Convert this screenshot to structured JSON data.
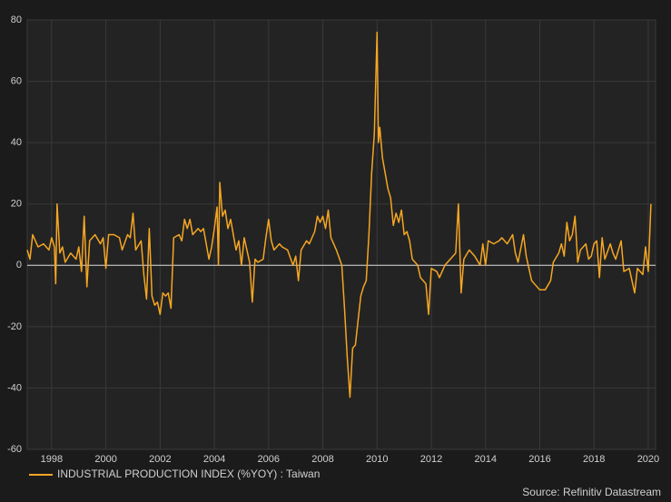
{
  "chart_data": {
    "type": "line",
    "x": [
      1997.1,
      1997.2,
      1997.3,
      1997.5,
      1997.7,
      1997.9,
      1998.0,
      1998.1,
      1998.15,
      1998.2,
      1998.3,
      1998.4,
      1998.5,
      1998.7,
      1998.9,
      1999.0,
      1999.1,
      1999.2,
      1999.3,
      1999.4,
      1999.6,
      1999.8,
      1999.9,
      2000.0,
      2000.1,
      2000.3,
      2000.5,
      2000.6,
      2000.8,
      2000.9,
      2001.0,
      2001.1,
      2001.3,
      2001.4,
      2001.5,
      2001.6,
      2001.7,
      2001.8,
      2001.9,
      2002.0,
      2002.1,
      2002.2,
      2002.3,
      2002.4,
      2002.5,
      2002.7,
      2002.8,
      2002.9,
      2003.0,
      2003.1,
      2003.2,
      2003.4,
      2003.5,
      2003.6,
      2003.8,
      2003.9,
      2004.0,
      2004.1,
      2004.15,
      2004.2,
      2004.3,
      2004.4,
      2004.5,
      2004.6,
      2004.7,
      2004.8,
      2004.9,
      2005.0,
      2005.1,
      2005.3,
      2005.4,
      2005.5,
      2005.6,
      2005.8,
      2005.9,
      2006.0,
      2006.1,
      2006.2,
      2006.4,
      2006.5,
      2006.7,
      2006.9,
      2007.0,
      2007.1,
      2007.2,
      2007.4,
      2007.5,
      2007.7,
      2007.8,
      2007.9,
      2008.0,
      2008.1,
      2008.2,
      2008.3,
      2008.5,
      2008.7,
      2008.8,
      2008.9,
      2009.0,
      2009.1,
      2009.2,
      2009.3,
      2009.4,
      2009.5,
      2009.6,
      2009.7,
      2009.8,
      2009.9,
      2010.0,
      2010.05,
      2010.1,
      2010.2,
      2010.3,
      2010.4,
      2010.5,
      2010.6,
      2010.7,
      2010.8,
      2010.9,
      2011.0,
      2011.1,
      2011.2,
      2011.3,
      2011.5,
      2011.6,
      2011.8,
      2011.9,
      2012.0,
      2012.2,
      2012.3,
      2012.5,
      2012.7,
      2012.9,
      2013.0,
      2013.1,
      2013.2,
      2013.4,
      2013.6,
      2013.8,
      2013.9,
      2014.0,
      2014.1,
      2014.3,
      2014.5,
      2014.6,
      2014.8,
      2015.0,
      2015.1,
      2015.2,
      2015.4,
      2015.5,
      2015.7,
      2015.8,
      2016.0,
      2016.2,
      2016.4,
      2016.5,
      2016.7,
      2016.8,
      2016.9,
      2017.0,
      2017.1,
      2017.2,
      2017.3,
      2017.4,
      2017.5,
      2017.7,
      2017.8,
      2017.9,
      2018.0,
      2018.1,
      2018.2,
      2018.3,
      2018.4,
      2018.6,
      2018.7,
      2018.8,
      2019.0,
      2019.1,
      2019.3,
      2019.5,
      2019.6,
      2019.8,
      2019.9,
      2020.0,
      2020.1
    ],
    "series": [
      {
        "name": "INDUSTRIAL PRODUCTION INDEX (%YOY) : Taiwan",
        "color": "#f5a623",
        "values": [
          5,
          2,
          10,
          6,
          7,
          5,
          9,
          6,
          -6,
          20,
          4,
          6,
          1,
          4,
          2,
          6,
          -2,
          16,
          -7,
          8,
          10,
          7,
          9,
          -1,
          10,
          10,
          9,
          5,
          10,
          9,
          17,
          5,
          8,
          -3,
          -11,
          12,
          -10,
          -13,
          -12,
          -16,
          -9,
          -10,
          -9,
          -14,
          9,
          10,
          8,
          15,
          12,
          15,
          10,
          12,
          11,
          12,
          2,
          6,
          12,
          19,
          0,
          27,
          16,
          18,
          12,
          15,
          10,
          5,
          8,
          0,
          9,
          1,
          -12,
          2,
          1,
          2,
          9,
          15,
          8,
          5,
          7,
          6,
          5,
          0,
          3,
          -5,
          5,
          8,
          7,
          11,
          16,
          14,
          16,
          12,
          18,
          9,
          5,
          0,
          -14,
          -30,
          -43,
          -27,
          -26,
          -18,
          -10,
          -7,
          -5,
          10,
          30,
          43,
          76,
          40,
          45,
          35,
          30,
          25,
          22,
          13,
          17,
          14,
          18,
          10,
          11,
          8,
          2,
          0,
          -4,
          -6,
          -16,
          -1,
          -2,
          -4,
          0,
          2,
          4,
          20,
          -9,
          2,
          5,
          3,
          0,
          7,
          0,
          8,
          7,
          8,
          9,
          7,
          10,
          4,
          1,
          10,
          3,
          -5,
          -6,
          -8,
          -8,
          -5,
          1,
          4,
          7,
          3,
          14,
          8,
          10,
          16,
          1,
          5,
          7,
          2,
          3,
          7,
          8,
          -4,
          9,
          2,
          7,
          4,
          2,
          8,
          -2,
          -1,
          -9,
          -1,
          -3,
          6,
          -2,
          20
        ]
      }
    ],
    "xlim": [
      1997.1,
      2020.27
    ],
    "xticks": [
      1998,
      2000,
      2002,
      2004,
      2006,
      2008,
      2010,
      2012,
      2014,
      2016,
      2018,
      2020
    ],
    "ylim": [
      -60,
      80
    ],
    "yticks": [
      -60,
      -40,
      -20,
      0,
      20,
      40,
      60,
      80
    ],
    "grid": true,
    "zero_line": true,
    "legend": "bottom-left",
    "source": "Source: Refinitiv Datastream"
  }
}
